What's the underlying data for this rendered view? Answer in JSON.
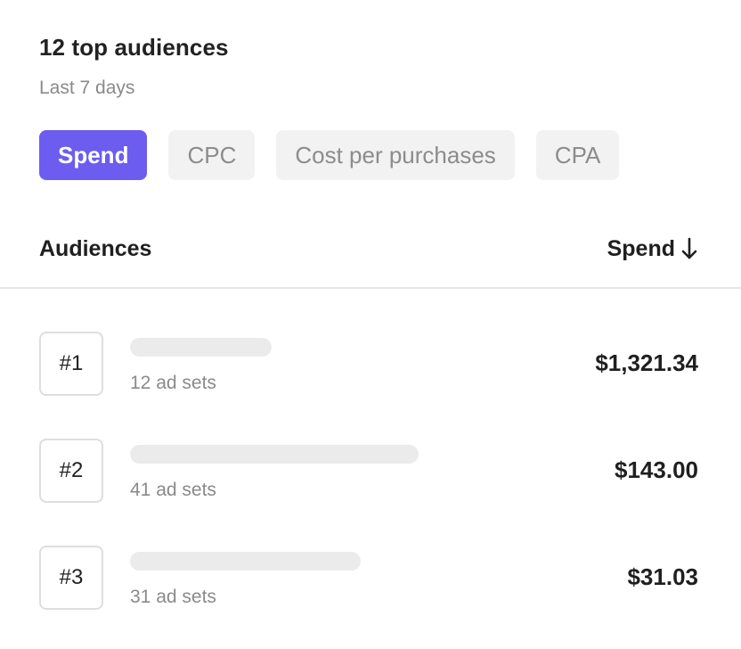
{
  "card": {
    "title": "12 top audiences",
    "subtitle": "Last 7 days"
  },
  "tabs": [
    {
      "label": "Spend",
      "active": true
    },
    {
      "label": "CPC",
      "active": false
    },
    {
      "label": "Cost per purchases",
      "active": false
    },
    {
      "label": "CPA",
      "active": false
    }
  ],
  "table": {
    "audience_header": "Audiences",
    "metric_header": "Spend",
    "sort_icon": "arrow-down-icon",
    "rows": [
      {
        "rank": "#1",
        "name_bar_fill": 0.49,
        "ad_sets": "12 ad sets",
        "value": "$1,321.34"
      },
      {
        "rank": "#2",
        "name_bar_fill": 1.0,
        "ad_sets": "41 ad sets",
        "value": "$143.00"
      },
      {
        "rank": "#3",
        "name_bar_fill": 0.8,
        "ad_sets": "31 ad sets",
        "value": "$31.03"
      }
    ]
  },
  "colors": {
    "accent": "#6c5cf0",
    "tab_inactive_bg": "#f2f2f2",
    "muted_text": "#8a8a8a",
    "skeleton": "#ebebeb"
  }
}
